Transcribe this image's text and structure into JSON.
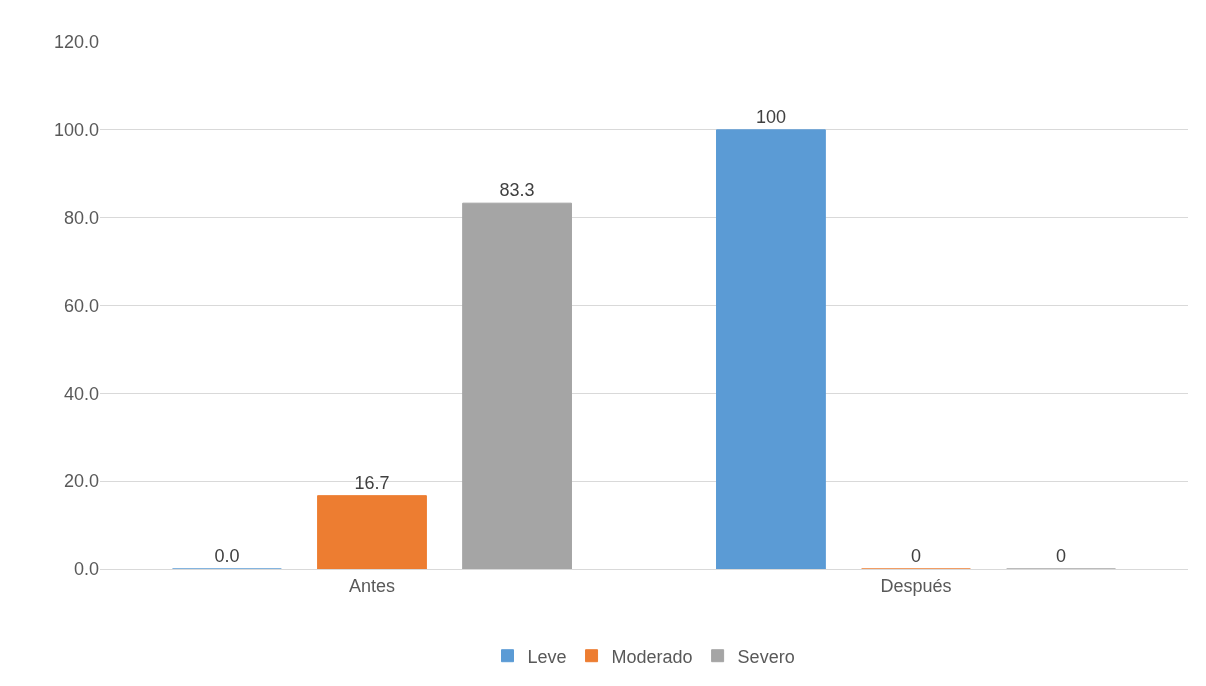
{
  "chart_data": {
    "type": "bar",
    "categories": [
      "Antes",
      "Después"
    ],
    "series": [
      {
        "name": "Leve",
        "color": "#5b9bd5",
        "values": [
          0,
          100
        ],
        "value_labels": [
          "0.0",
          "100"
        ]
      },
      {
        "name": "Moderado",
        "color": "#ed7d31",
        "values": [
          16.7,
          0
        ],
        "value_labels": [
          "16.7",
          "0"
        ]
      },
      {
        "name": "Severo",
        "color": "#a5a5a5",
        "values": [
          83.3,
          0
        ],
        "value_labels": [
          "83.3",
          "0"
        ]
      }
    ],
    "ylim": [
      0,
      120
    ],
    "yticks": [
      {
        "value": 0,
        "label": "0.0"
      },
      {
        "value": 20,
        "label": "20.0"
      },
      {
        "value": 40,
        "label": "40.0"
      },
      {
        "value": 60,
        "label": "60.0"
      },
      {
        "value": 80,
        "label": "80.0"
      },
      {
        "value": 100,
        "label": "100.0"
      },
      {
        "value": 120,
        "label": "120.0"
      }
    ],
    "grid": "y",
    "legend": "bottom"
  }
}
